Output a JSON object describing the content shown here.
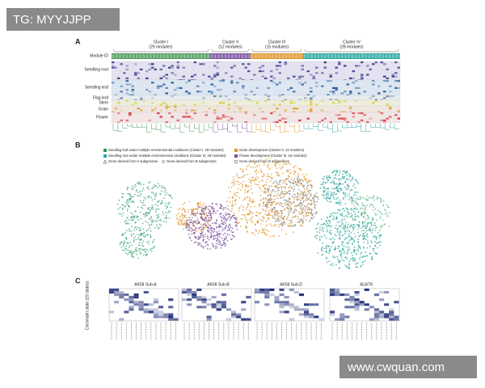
{
  "watermark_top": "TG: MYYJJPP",
  "watermark_bottom": "www.cwquan.com",
  "panel_a": {
    "label": "A",
    "clusters": [
      {
        "name": "Cluster I",
        "modules": "(29 modules)"
      },
      {
        "name": "Cluster II",
        "modules": "(12 modules)"
      },
      {
        "name": "Cluster III",
        "modules": "(15 modules)"
      },
      {
        "name": "Cluster IV",
        "modules": "(28 modules)"
      }
    ],
    "row_labels": [
      "Module ID",
      "Seedling root",
      "Seedling leaf",
      "Flag leaf",
      "Stem",
      "Grain",
      "Flower"
    ]
  },
  "panel_b": {
    "label": "B",
    "legend": [
      "Seedling leaf under multiple environmental conditions (Cluster I, 29 modules)",
      "Seedling root under multiple environmental conditions (Cluster IV, 28 modules)",
      "Gene derived from A subgenome",
      "Grain development (Cluster II, 12 modules)",
      "Flower development (Cluster III, 15 modules)",
      "Gene derived from B subgenome",
      "Gene derived from D subgenome"
    ]
  },
  "panel_c": {
    "label": "C",
    "y_label": "Chromatin state (15 states)",
    "titles": [
      "AK58 Sub-A",
      "AK58 Sub-B",
      "AK58 Sub-D",
      "AL8/78"
    ]
  }
}
